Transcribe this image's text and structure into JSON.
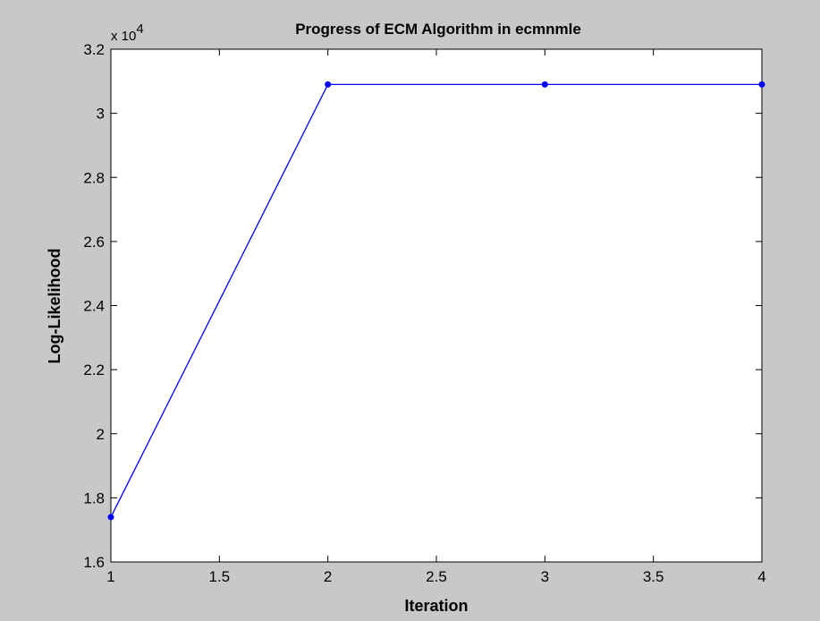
{
  "chart_data": {
    "type": "line",
    "title": "Progress of ECM Algorithm in ecmnmle",
    "xlabel": "Iteration",
    "ylabel": "Log-Likelihood",
    "y_multiplier": {
      "base": "x 10",
      "exponent": "4"
    },
    "xlim": [
      1,
      4
    ],
    "ylim": [
      1.6,
      3.2
    ],
    "x_ticks": [
      1,
      1.5,
      2,
      2.5,
      3,
      3.5,
      4
    ],
    "x_tick_labels": [
      "1",
      "1.5",
      "2",
      "2.5",
      "3",
      "3.5",
      "4"
    ],
    "y_ticks": [
      1.6,
      1.8,
      2.0,
      2.2,
      2.4,
      2.6,
      2.8,
      3.0,
      3.2
    ],
    "y_tick_labels": [
      "1.6",
      "1.8",
      "2",
      "2.2",
      "2.4",
      "2.6",
      "2.8",
      "3",
      "3.2"
    ],
    "grid": false,
    "series": [
      {
        "x": [
          1,
          2,
          3,
          4
        ],
        "y": [
          1.74,
          3.09,
          3.09,
          3.09
        ],
        "color": "#0000ff",
        "marker": "dot"
      }
    ]
  },
  "colors": {
    "figure_bg": "#c8c8c8",
    "axes_bg": "#ffffff",
    "line": "#0000ff"
  }
}
